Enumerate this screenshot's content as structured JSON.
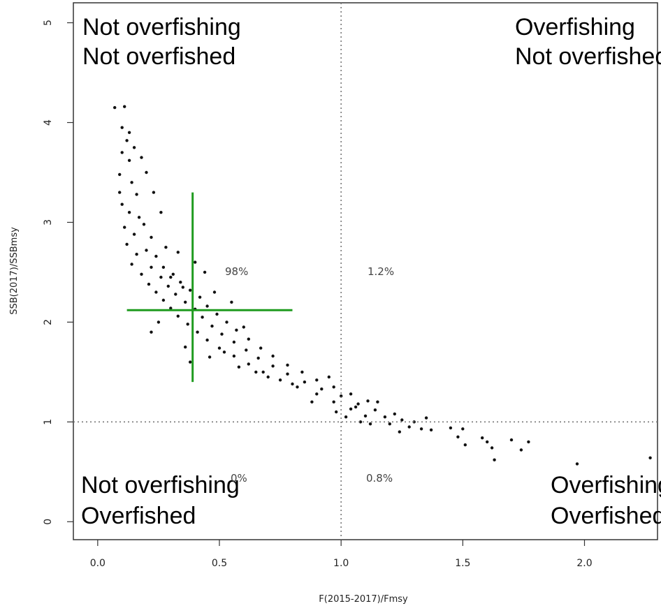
{
  "chart_data": {
    "type": "scatter",
    "xlabel": "F(2015-2017)/Fmsy",
    "ylabel": "SSB(2017)/SSBmsy",
    "xlim": [
      -0.1,
      2.3
    ],
    "ylim": [
      -0.18,
      5.2
    ],
    "x_ticks": [
      "0.0",
      "0.5",
      "1.0",
      "1.5",
      "2.0"
    ],
    "y_ticks": [
      "0",
      "1",
      "2",
      "3",
      "4",
      "5"
    ],
    "reference_lines": {
      "x": 1.0,
      "y": 1.0,
      "style": "dotted"
    },
    "quadrant_labels": {
      "top_left": [
        "Not overfishing",
        "Not overfished"
      ],
      "top_right": [
        "Overfishing",
        "Not overfished"
      ],
      "bottom_left": [
        "Not overfishing",
        "Overfished"
      ],
      "bottom_right": [
        "Overfishing",
        "Overfished"
      ]
    },
    "quadrant_percentages": {
      "top_left": "98%",
      "top_right": "1.2%",
      "bottom_left": "0%",
      "bottom_right": "0.8%"
    },
    "point_estimate": {
      "x": 0.39,
      "y": 2.12,
      "x_range": [
        0.12,
        0.8
      ],
      "y_range": [
        1.4,
        3.3
      ],
      "color": "#1f9b1f"
    },
    "points": [
      [
        0.07,
        4.15
      ],
      [
        0.11,
        4.16
      ],
      [
        0.1,
        3.95
      ],
      [
        0.12,
        3.82
      ],
      [
        0.1,
        3.7
      ],
      [
        0.13,
        3.62
      ],
      [
        0.09,
        3.48
      ],
      [
        0.14,
        3.4
      ],
      [
        0.09,
        3.3
      ],
      [
        0.16,
        3.28
      ],
      [
        0.1,
        3.18
      ],
      [
        0.13,
        3.1
      ],
      [
        0.17,
        3.05
      ],
      [
        0.11,
        2.95
      ],
      [
        0.19,
        2.98
      ],
      [
        0.15,
        2.88
      ],
      [
        0.22,
        2.85
      ],
      [
        0.12,
        2.78
      ],
      [
        0.2,
        2.72
      ],
      [
        0.16,
        2.68
      ],
      [
        0.24,
        2.66
      ],
      [
        0.14,
        2.58
      ],
      [
        0.22,
        2.55
      ],
      [
        0.27,
        2.55
      ],
      [
        0.18,
        2.48
      ],
      [
        0.26,
        2.45
      ],
      [
        0.31,
        2.48
      ],
      [
        0.21,
        2.38
      ],
      [
        0.29,
        2.36
      ],
      [
        0.34,
        2.4
      ],
      [
        0.24,
        2.3
      ],
      [
        0.32,
        2.28
      ],
      [
        0.38,
        2.32
      ],
      [
        0.27,
        2.22
      ],
      [
        0.36,
        2.2
      ],
      [
        0.42,
        2.25
      ],
      [
        0.3,
        2.14
      ],
      [
        0.4,
        2.13
      ],
      [
        0.45,
        2.16
      ],
      [
        0.33,
        2.06
      ],
      [
        0.43,
        2.05
      ],
      [
        0.49,
        2.08
      ],
      [
        0.37,
        1.98
      ],
      [
        0.47,
        1.96
      ],
      [
        0.53,
        2.0
      ],
      [
        0.41,
        1.9
      ],
      [
        0.51,
        1.88
      ],
      [
        0.57,
        1.92
      ],
      [
        0.45,
        1.82
      ],
      [
        0.56,
        1.8
      ],
      [
        0.62,
        1.83
      ],
      [
        0.5,
        1.74
      ],
      [
        0.61,
        1.72
      ],
      [
        0.67,
        1.74
      ],
      [
        0.56,
        1.66
      ],
      [
        0.66,
        1.64
      ],
      [
        0.72,
        1.66
      ],
      [
        0.62,
        1.58
      ],
      [
        0.72,
        1.56
      ],
      [
        0.78,
        1.57
      ],
      [
        0.68,
        1.5
      ],
      [
        0.78,
        1.48
      ],
      [
        0.84,
        1.5
      ],
      [
        0.75,
        1.42
      ],
      [
        0.85,
        1.4
      ],
      [
        0.9,
        1.42
      ],
      [
        0.82,
        1.35
      ],
      [
        0.92,
        1.33
      ],
      [
        0.97,
        1.35
      ],
      [
        0.9,
        1.28
      ],
      [
        1.0,
        1.26
      ],
      [
        1.04,
        1.28
      ],
      [
        0.97,
        1.2
      ],
      [
        1.07,
        1.18
      ],
      [
        1.11,
        1.21
      ],
      [
        1.04,
        1.13
      ],
      [
        1.14,
        1.12
      ],
      [
        1.02,
        1.05
      ],
      [
        1.1,
        1.06
      ],
      [
        1.18,
        1.05
      ],
      [
        1.08,
        1.0
      ],
      [
        1.2,
        0.98
      ],
      [
        1.25,
        1.02
      ],
      [
        1.3,
        1.0
      ],
      [
        1.35,
        1.04
      ],
      [
        1.28,
        0.95
      ],
      [
        1.33,
        0.93
      ],
      [
        1.24,
        0.9
      ],
      [
        1.37,
        0.92
      ],
      [
        1.45,
        0.94
      ],
      [
        1.5,
        0.93
      ],
      [
        1.48,
        0.85
      ],
      [
        1.51,
        0.77
      ],
      [
        1.58,
        0.84
      ],
      [
        1.6,
        0.8
      ],
      [
        1.62,
        0.74
      ],
      [
        1.63,
        0.62
      ],
      [
        1.7,
        0.82
      ],
      [
        1.74,
        0.72
      ],
      [
        1.77,
        0.8
      ],
      [
        1.97,
        0.58
      ],
      [
        2.27,
        0.64
      ],
      [
        0.3,
        2.45
      ],
      [
        0.35,
        2.35
      ],
      [
        0.4,
        2.6
      ],
      [
        0.44,
        2.5
      ],
      [
        0.25,
        2.0
      ],
      [
        0.22,
        1.9
      ],
      [
        0.38,
        1.6
      ],
      [
        0.36,
        1.75
      ],
      [
        0.55,
        2.2
      ],
      [
        0.6,
        1.95
      ],
      [
        0.2,
        3.5
      ],
      [
        0.23,
        3.3
      ],
      [
        0.18,
        3.65
      ],
      [
        0.26,
        3.1
      ],
      [
        0.28,
        2.75
      ],
      [
        0.33,
        2.7
      ],
      [
        0.48,
        2.3
      ],
      [
        0.52,
        1.7
      ],
      [
        0.58,
        1.55
      ],
      [
        0.46,
        1.65
      ],
      [
        0.7,
        1.45
      ],
      [
        0.8,
        1.38
      ],
      [
        0.65,
        1.5
      ],
      [
        0.95,
        1.45
      ],
      [
        1.15,
        1.2
      ],
      [
        1.12,
        0.98
      ],
      [
        1.06,
        1.15
      ],
      [
        0.88,
        1.2
      ],
      [
        0.98,
        1.1
      ],
      [
        1.22,
        1.08
      ],
      [
        0.13,
        3.9
      ],
      [
        0.15,
        3.75
      ]
    ]
  }
}
